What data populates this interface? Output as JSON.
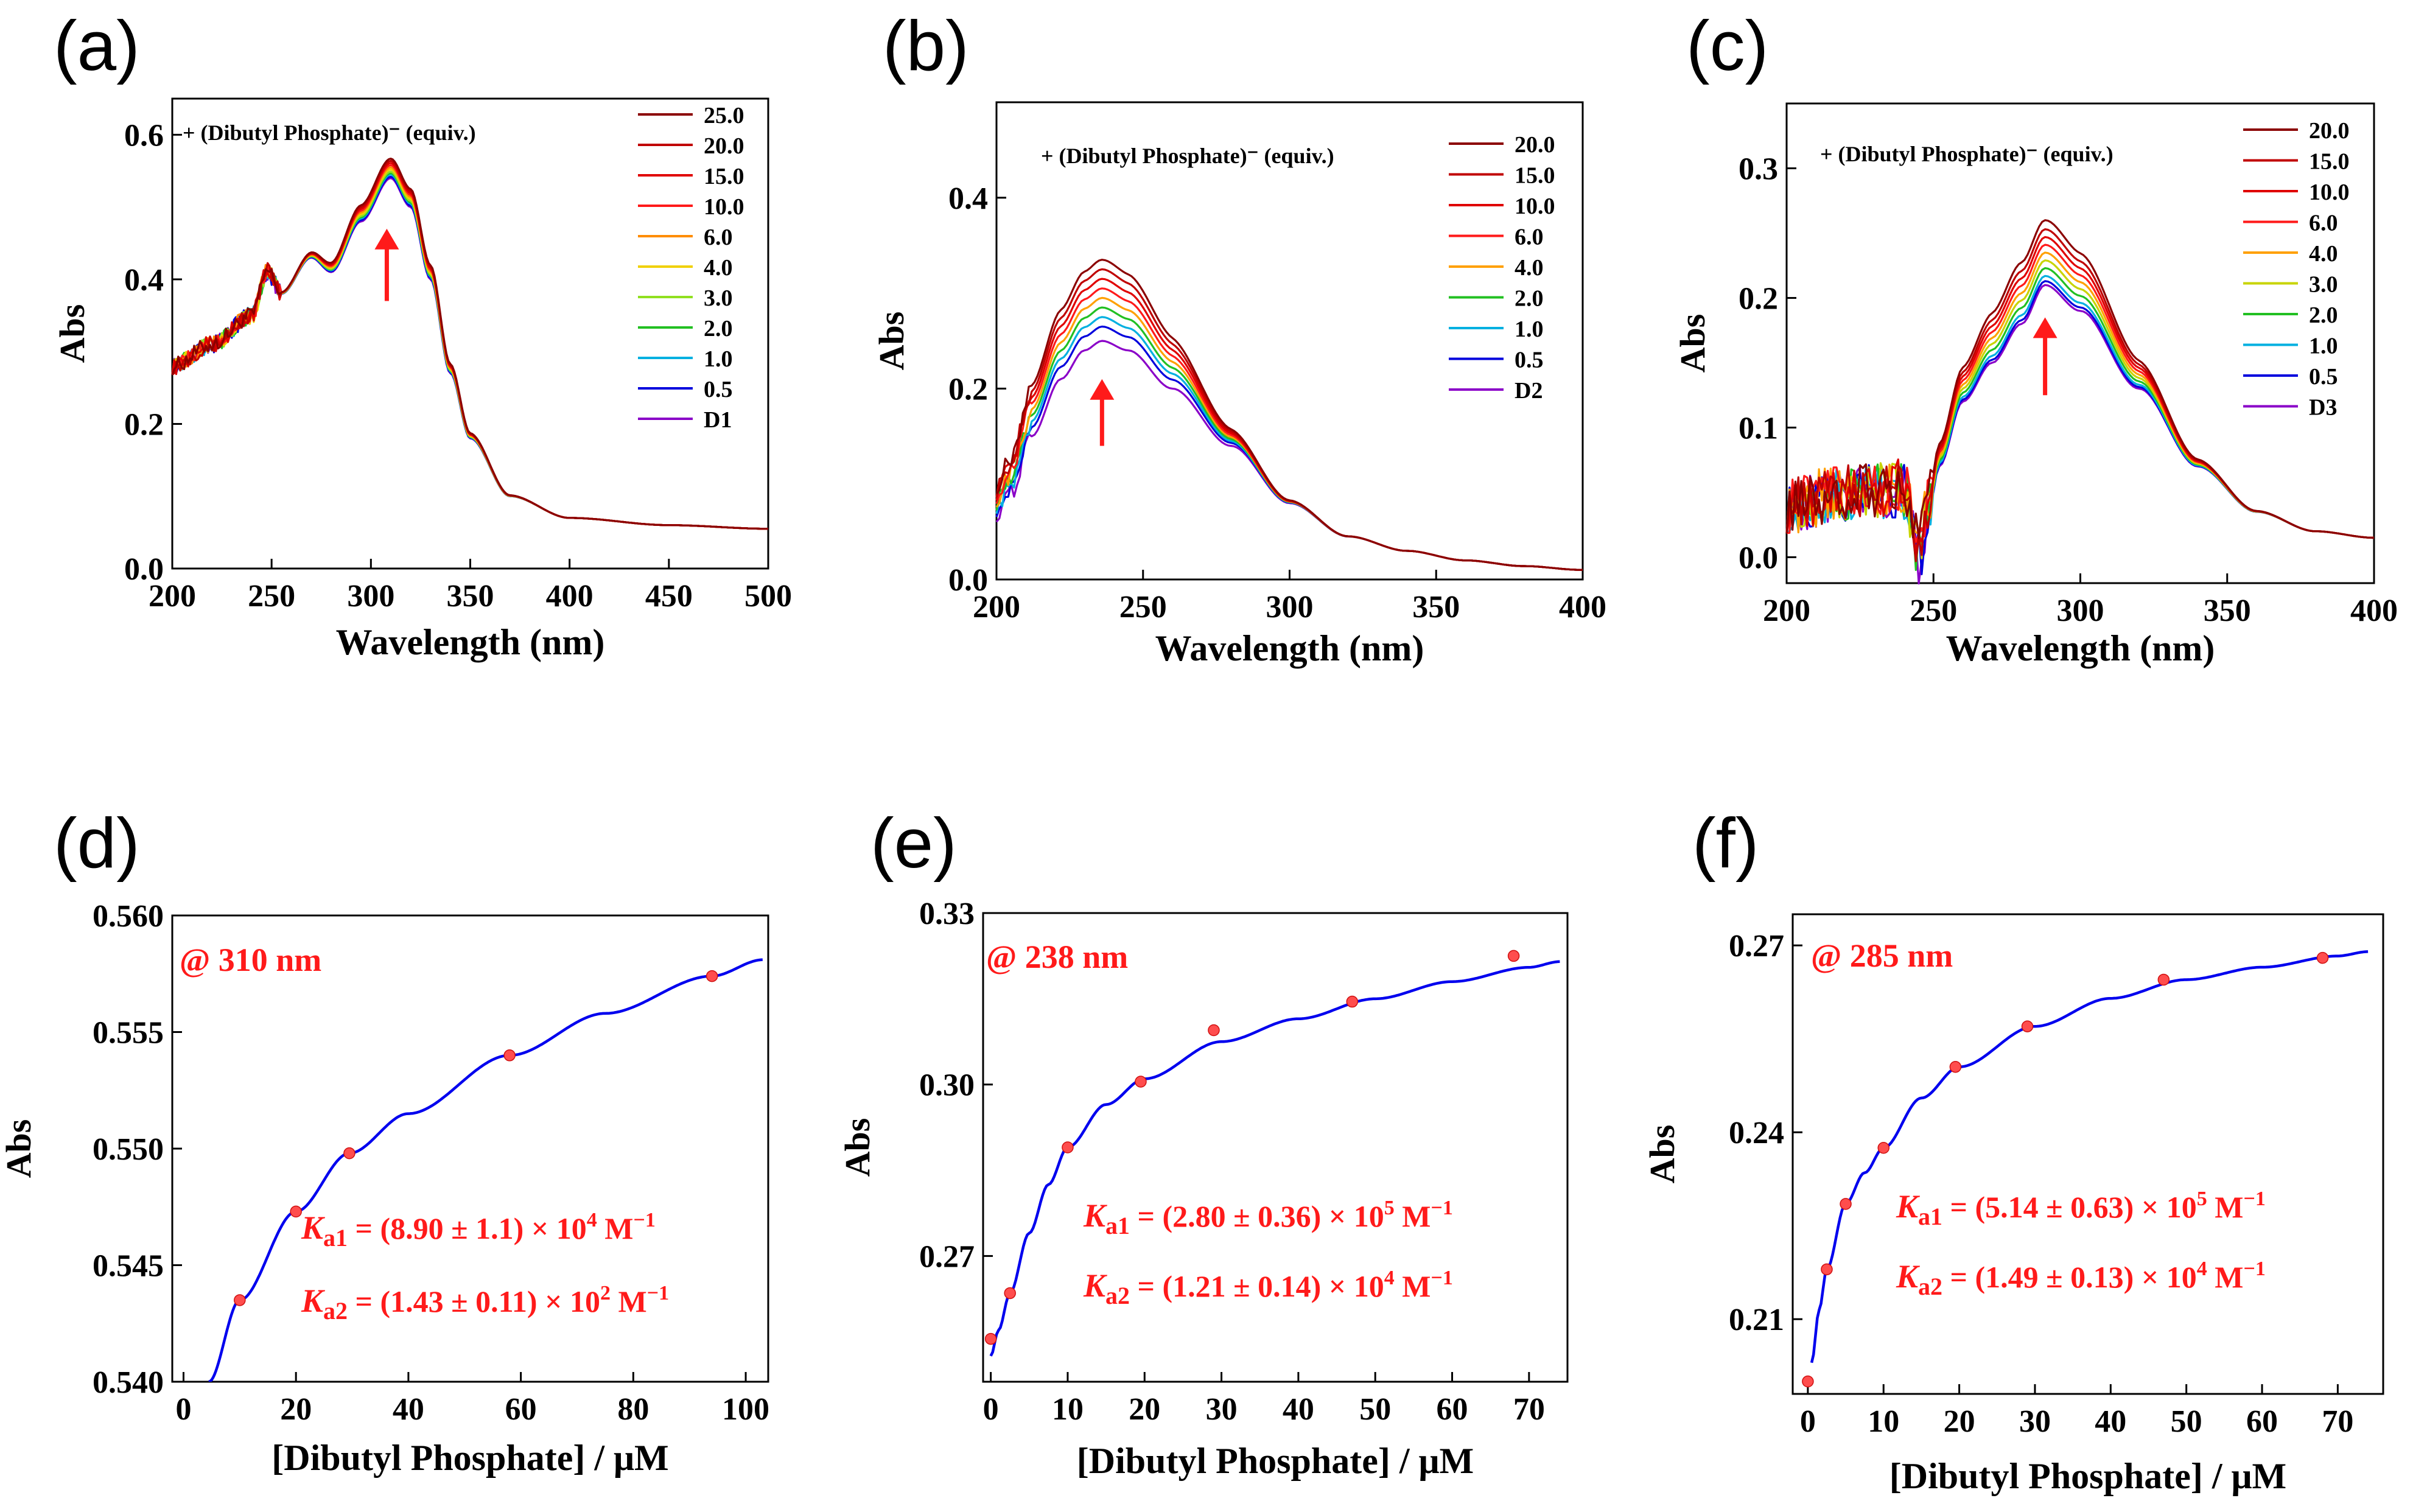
{
  "chart_data": [
    {
      "id": "a",
      "panel_label": "(a)",
      "type": "line",
      "xlabel": "Wavelength (nm)",
      "ylabel": "Abs",
      "xlim": [
        200,
        500
      ],
      "ylim": [
        0,
        0.65
      ],
      "xticks": [
        200,
        250,
        300,
        350,
        400,
        450,
        500
      ],
      "xtick_labels": [
        "200",
        "250",
        "300",
        "350",
        "400",
        "450",
        "500"
      ],
      "yticks": [
        0,
        0.2,
        0.4,
        0.6
      ],
      "ytick_labels": [
        "0.0",
        "0.2",
        "0.4",
        "0.6"
      ],
      "annotation": "+ (Dibutyl Phosphate)⁻ (equiv.)",
      "legend_position": "top-right",
      "arrow": {
        "x": 308,
        "y_from": 0.37,
        "y_to": 0.47
      },
      "spectrum": {
        "noise_end": 255,
        "noise_amp": 0.012,
        "points": [
          [
            200,
            0.28
          ],
          [
            220,
            0.31
          ],
          [
            240,
            0.35
          ],
          [
            248,
            0.41
          ],
          [
            255,
            0.38
          ],
          [
            270,
            0.43
          ],
          [
            280,
            0.41
          ],
          [
            295,
            0.48
          ],
          [
            310,
            0.54
          ],
          [
            320,
            0.5
          ],
          [
            330,
            0.4
          ],
          [
            340,
            0.27
          ],
          [
            350,
            0.18
          ],
          [
            370,
            0.1
          ],
          [
            400,
            0.07
          ],
          [
            450,
            0.06
          ],
          [
            500,
            0.055
          ]
        ]
      },
      "series": [
        {
          "name": "25.0",
          "color": "#8b0000",
          "peak_delta": 0.027
        },
        {
          "name": "20.0",
          "color": "#c00000",
          "peak_delta": 0.024
        },
        {
          "name": "15.0",
          "color": "#e00000",
          "peak_delta": 0.021
        },
        {
          "name": "10.0",
          "color": "#ff1a1a",
          "peak_delta": 0.018
        },
        {
          "name": "6.0",
          "color": "#ff8c00",
          "peak_delta": 0.015
        },
        {
          "name": "4.0",
          "color": "#f0d000",
          "peak_delta": 0.012
        },
        {
          "name": "3.0",
          "color": "#90e020",
          "peak_delta": 0.009
        },
        {
          "name": "2.0",
          "color": "#22c022",
          "peak_delta": 0.007
        },
        {
          "name": "1.0",
          "color": "#00b0e0",
          "peak_delta": 0.005
        },
        {
          "name": "0.5",
          "color": "#0000dd",
          "peak_delta": 0.002
        },
        {
          "name": "D1",
          "color": "#8a00c8",
          "peak_delta": 0.0
        }
      ]
    },
    {
      "id": "b",
      "panel_label": "(b)",
      "type": "line",
      "xlabel": "Wavelength (nm)",
      "ylabel": "Abs",
      "xlim": [
        200,
        400
      ],
      "ylim": [
        0,
        0.5
      ],
      "xticks": [
        200,
        250,
        300,
        350,
        400
      ],
      "xtick_labels": [
        "200",
        "250",
        "300",
        "350",
        "400"
      ],
      "yticks": [
        0,
        0.2,
        0.4
      ],
      "ytick_labels": [
        "0.0",
        "0.2",
        "0.4"
      ],
      "annotation": "+ (Dibutyl Phosphate)⁻ (equiv.)",
      "legend_position": "top-right",
      "arrow": {
        "x": 236,
        "y_from": 0.14,
        "y_to": 0.21
      },
      "spectrum": {
        "noise_end": 212,
        "noise_amp": 0.01,
        "points": [
          [
            200,
            0.07
          ],
          [
            205,
            0.09
          ],
          [
            212,
            0.15
          ],
          [
            222,
            0.21
          ],
          [
            230,
            0.24
          ],
          [
            236,
            0.25
          ],
          [
            245,
            0.24
          ],
          [
            260,
            0.2
          ],
          [
            280,
            0.14
          ],
          [
            300,
            0.08
          ],
          [
            320,
            0.045
          ],
          [
            340,
            0.03
          ],
          [
            360,
            0.02
          ],
          [
            380,
            0.014
          ],
          [
            400,
            0.01
          ]
        ]
      },
      "series": [
        {
          "name": "20.0",
          "color": "#8b0000",
          "peak_delta": 0.085
        },
        {
          "name": "15.0",
          "color": "#c00000",
          "peak_delta": 0.075
        },
        {
          "name": "10.0",
          "color": "#e00000",
          "peak_delta": 0.065
        },
        {
          "name": "6.0",
          "color": "#ff1a1a",
          "peak_delta": 0.055
        },
        {
          "name": "4.0",
          "color": "#ffa000",
          "peak_delta": 0.045
        },
        {
          "name": "2.0",
          "color": "#22c022",
          "peak_delta": 0.035
        },
        {
          "name": "1.0",
          "color": "#00b0e0",
          "peak_delta": 0.025
        },
        {
          "name": "0.5",
          "color": "#0000dd",
          "peak_delta": 0.015
        },
        {
          "name": "D2",
          "color": "#8a00c8",
          "peak_delta": 0.0
        }
      ]
    },
    {
      "id": "c",
      "panel_label": "(c)",
      "type": "line",
      "xlabel": "Wavelength (nm)",
      "ylabel": "Abs",
      "xlim": [
        200,
        400
      ],
      "ylim": [
        -0.02,
        0.35
      ],
      "xticks": [
        200,
        250,
        300,
        350,
        400
      ],
      "xtick_labels": [
        "200",
        "250",
        "300",
        "350",
        "400"
      ],
      "yticks": [
        0,
        0.1,
        0.2,
        0.3
      ],
      "ytick_labels": [
        "0.0",
        "0.1",
        "0.2",
        "0.3"
      ],
      "annotation": "+ (Dibutyl Phosphate)⁻ (equiv.)",
      "legend_position": "top-right",
      "arrow": {
        "x": 288,
        "y_from": 0.125,
        "y_to": 0.185
      },
      "spectrum": {
        "noise_end": 250,
        "noise_amp": 0.022,
        "points": [
          [
            200,
            0.04
          ],
          [
            220,
            0.05
          ],
          [
            240,
            0.05
          ],
          [
            245,
            0.0
          ],
          [
            248,
            0.03
          ],
          [
            252,
            0.07
          ],
          [
            260,
            0.12
          ],
          [
            270,
            0.15
          ],
          [
            280,
            0.18
          ],
          [
            288,
            0.21
          ],
          [
            300,
            0.19
          ],
          [
            320,
            0.13
          ],
          [
            340,
            0.07
          ],
          [
            360,
            0.035
          ],
          [
            380,
            0.02
          ],
          [
            400,
            0.015
          ]
        ]
      },
      "series": [
        {
          "name": "20.0",
          "color": "#8b0000",
          "peak_delta": 0.05
        },
        {
          "name": "15.0",
          "color": "#c00000",
          "peak_delta": 0.043
        },
        {
          "name": "10.0",
          "color": "#e00000",
          "peak_delta": 0.037
        },
        {
          "name": "6.0",
          "color": "#ff1a1a",
          "peak_delta": 0.031
        },
        {
          "name": "4.0",
          "color": "#ffa000",
          "peak_delta": 0.025
        },
        {
          "name": "3.0",
          "color": "#c8d400",
          "peak_delta": 0.019
        },
        {
          "name": "2.0",
          "color": "#22c022",
          "peak_delta": 0.013
        },
        {
          "name": "1.0",
          "color": "#00b0e0",
          "peak_delta": 0.007
        },
        {
          "name": "0.5",
          "color": "#0000dd",
          "peak_delta": 0.003
        },
        {
          "name": "D3",
          "color": "#8a00c8",
          "peak_delta": 0.0
        }
      ]
    },
    {
      "id": "d",
      "panel_label": "(d)",
      "type": "scatter",
      "xlabel": "[Dibutyl Phosphate] / μM",
      "ylabel": "Abs",
      "xlim": [
        -2,
        104
      ],
      "ylim": [
        0.54,
        0.56
      ],
      "xticks": [
        0,
        20,
        40,
        60,
        80,
        100
      ],
      "xtick_labels": [
        "0",
        "20",
        "40",
        "60",
        "80",
        "100"
      ],
      "yticks": [
        0.54,
        0.545,
        0.55,
        0.555,
        0.56
      ],
      "ytick_labels": [
        "0.540",
        "0.545",
        "0.550",
        "0.555",
        "0.560"
      ],
      "wavelength_label": "@ 310 nm",
      "ka_labels": [
        {
          "prefix": "K",
          "sub": "a1",
          "text": " = (8.90 ± 1.1) × 10",
          "exp": "4",
          "unit": " M",
          "unit_exp": "−1"
        },
        {
          "prefix": "K",
          "sub": "a2",
          "text": " = (1.43 ± 0.11) × 10",
          "exp": "2",
          "unit": " M",
          "unit_exp": "−1"
        }
      ],
      "points": {
        "x": [
          10,
          20,
          29.5,
          58,
          94
        ],
        "y": [
          0.5435,
          0.5473,
          0.5498,
          0.554,
          0.5574
        ]
      },
      "fit": {
        "x": [
          4.5,
          10,
          20,
          29.5,
          40,
          58,
          75,
          94,
          103
        ],
        "y": [
          0.54,
          0.5435,
          0.5473,
          0.5498,
          0.5515,
          0.554,
          0.5558,
          0.5574,
          0.5581
        ]
      },
      "fit_color": "#0000ee",
      "point_color": "#ff4d4d"
    },
    {
      "id": "e",
      "panel_label": "(e)",
      "type": "scatter",
      "xlabel": "[Dibutyl Phosphate] / μM",
      "ylabel": "Abs",
      "xlim": [
        -1,
        75
      ],
      "ylim": [
        0.248,
        0.33
      ],
      "xticks": [
        0,
        10,
        20,
        30,
        40,
        50,
        60,
        70
      ],
      "xtick_labels": [
        "0",
        "10",
        "20",
        "30",
        "40",
        "50",
        "60",
        "70"
      ],
      "yticks": [
        0.27,
        0.3,
        0.33
      ],
      "ytick_labels": [
        "0.27",
        "0.30",
        "0.33"
      ],
      "wavelength_label": "@ 238 nm",
      "ka_labels": [
        {
          "prefix": "K",
          "sub": "a1",
          "text": " = (2.80 ± 0.36) × 10",
          "exp": "5",
          "unit": " M",
          "unit_exp": "−1"
        },
        {
          "prefix": "K",
          "sub": "a2",
          "text": " = (1.21 ± 0.14) × 10",
          "exp": "4",
          "unit": " M",
          "unit_exp": "−1"
        }
      ],
      "points": {
        "x": [
          0,
          2.5,
          10,
          19.5,
          29,
          47,
          68
        ],
        "y": [
          0.2555,
          0.2635,
          0.289,
          0.3005,
          0.3095,
          0.3145,
          0.3225
        ]
      },
      "fit": {
        "x": [
          0,
          1,
          2.5,
          5,
          7.5,
          10,
          15,
          20,
          30,
          40,
          50,
          60,
          70,
          74
        ],
        "y": [
          0.2525,
          0.257,
          0.2635,
          0.274,
          0.2825,
          0.289,
          0.2965,
          0.301,
          0.3075,
          0.3115,
          0.315,
          0.318,
          0.3205,
          0.3215
        ]
      },
      "fit_color": "#0000ee",
      "point_color": "#ff4d4d"
    },
    {
      "id": "f",
      "panel_label": "(f)",
      "type": "scatter",
      "xlabel": "[Dibutyl Phosphate] / μM",
      "ylabel": "Abs",
      "xlim": [
        -2,
        76
      ],
      "ylim": [
        0.198,
        0.275
      ],
      "xticks": [
        0,
        10,
        20,
        30,
        40,
        50,
        60,
        70
      ],
      "xtick_labels": [
        "0",
        "10",
        "20",
        "30",
        "40",
        "50",
        "60",
        "70"
      ],
      "yticks": [
        0.21,
        0.24,
        0.27
      ],
      "ytick_labels": [
        "0.21",
        "0.24",
        "0.27"
      ],
      "wavelength_label": "@ 285 nm",
      "ka_labels": [
        {
          "prefix": "K",
          "sub": "a1",
          "text": " = (5.14 ± 0.63) × 10",
          "exp": "5",
          "unit": " M",
          "unit_exp": "−1"
        },
        {
          "prefix": "K",
          "sub": "a2",
          "text": " = (1.49 ± 0.13) × 10",
          "exp": "4",
          "unit": " M",
          "unit_exp": "−1"
        }
      ],
      "points": {
        "x": [
          0,
          2.5,
          5,
          10,
          19.5,
          29,
          47,
          68
        ],
        "y": [
          0.2,
          0.218,
          0.2285,
          0.2375,
          0.2505,
          0.257,
          0.2645,
          0.268
        ]
      },
      "fit": {
        "x": [
          0.5,
          1.5,
          2.5,
          5,
          7.5,
          10,
          15,
          20,
          30,
          40,
          50,
          60,
          70,
          74
        ],
        "y": [
          0.203,
          0.2115,
          0.218,
          0.2285,
          0.2335,
          0.2375,
          0.2455,
          0.2505,
          0.257,
          0.2615,
          0.2645,
          0.2665,
          0.2683,
          0.269
        ]
      },
      "fit_color": "#0000ee",
      "point_color": "#ff4d4d"
    }
  ]
}
